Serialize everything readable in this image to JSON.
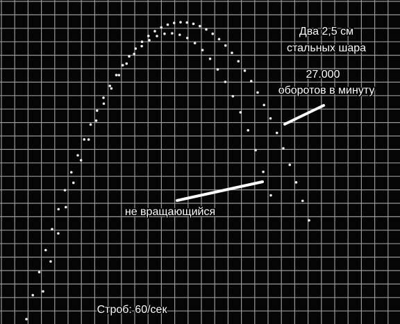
{
  "caption": {
    "title": [
      "Два 2,5 см",
      "стальных шара"
    ],
    "speed": [
      "27.000",
      "оборотов в минуту"
    ],
    "non_spinning": "не вращающийся",
    "strobe": "Строб: 60/сек"
  }
}
